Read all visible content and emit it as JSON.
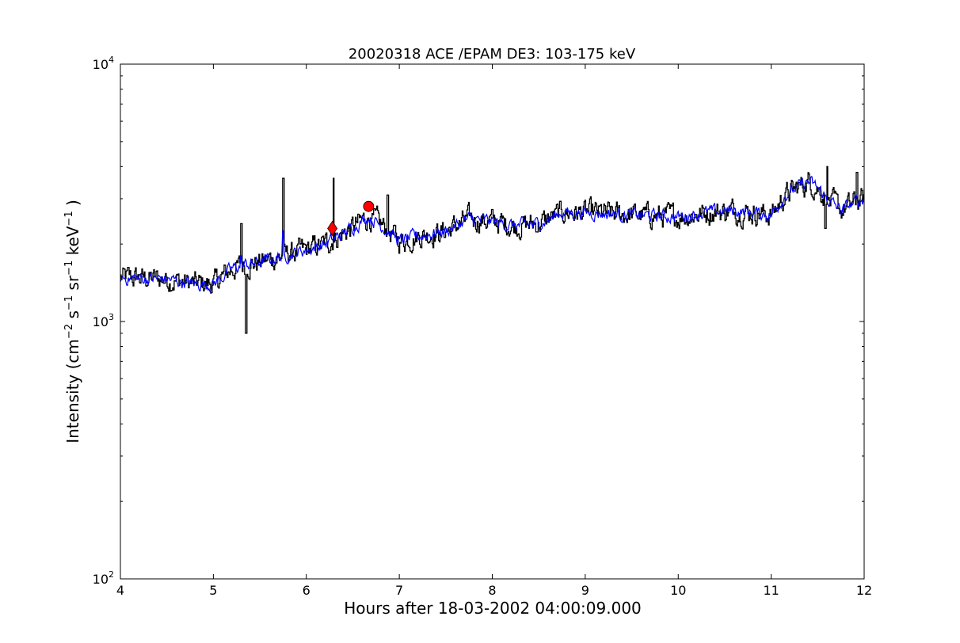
{
  "chart_data": {
    "type": "line",
    "title": "20020318 ACE /EPAM DE3: 103-175 keV",
    "xlabel": "Hours after 18-03-2002 04:00:09.000",
    "ylabel": {
      "prefix": "Intensity (cm",
      "parts": [
        {
          "text": "−2",
          "sup": true
        },
        {
          "text": " s",
          "sup": false
        },
        {
          "text": "−1",
          "sup": true
        },
        {
          "text": " sr",
          "sup": false
        },
        {
          "text": "−1",
          "sup": true
        },
        {
          "text": " keV",
          "sup": false
        },
        {
          "text": "−1",
          "sup": true
        },
        {
          "text": " )",
          "sup": false
        }
      ]
    },
    "xlim": [
      4,
      12
    ],
    "ylim": [
      100,
      10000
    ],
    "yscale": "log",
    "grid": false,
    "xticks": [
      4,
      5,
      6,
      7,
      8,
      9,
      10,
      11,
      12
    ],
    "xtick_labels": [
      "4",
      "5",
      "6",
      "7",
      "8",
      "9",
      "10",
      "11",
      "12"
    ],
    "yticks": [
      {
        "value": 100,
        "base": "10",
        "exp": "2"
      },
      {
        "value": 1000,
        "base": "10",
        "exp": "3"
      },
      {
        "value": 10000,
        "base": "10",
        "exp": "4"
      }
    ],
    "series": [
      {
        "style": "step",
        "color": "#000000",
        "noise": 0.035,
        "points": [
          [
            4.0,
            1480
          ],
          [
            4.5,
            1460
          ],
          [
            4.8,
            1400
          ],
          [
            5.0,
            1400
          ],
          [
            5.2,
            1600
          ],
          [
            5.3,
            1650
          ],
          [
            5.5,
            1700
          ],
          [
            5.75,
            1800
          ],
          [
            6.0,
            1900
          ],
          [
            6.2,
            2000
          ],
          [
            6.4,
            2200
          ],
          [
            6.55,
            2400
          ],
          [
            6.67,
            2550
          ],
          [
            6.85,
            2300
          ],
          [
            7.0,
            2050
          ],
          [
            7.2,
            2150
          ],
          [
            7.5,
            2250
          ],
          [
            7.75,
            2500
          ],
          [
            8.0,
            2450
          ],
          [
            8.25,
            2350
          ],
          [
            8.5,
            2400
          ],
          [
            8.75,
            2650
          ],
          [
            9.0,
            2650
          ],
          [
            9.5,
            2600
          ],
          [
            10.0,
            2550
          ],
          [
            10.3,
            2650
          ],
          [
            10.6,
            2700
          ],
          [
            11.0,
            2600
          ],
          [
            11.15,
            3100
          ],
          [
            11.4,
            3500
          ],
          [
            11.5,
            3300
          ],
          [
            11.6,
            3000
          ],
          [
            11.75,
            2700
          ],
          [
            11.9,
            2900
          ],
          [
            12.0,
            3000
          ]
        ],
        "spikes": [
          [
            5.3,
            2400
          ],
          [
            5.35,
            900
          ],
          [
            5.75,
            3600
          ],
          [
            6.29,
            3600
          ],
          [
            6.87,
            3100
          ],
          [
            11.58,
            2300
          ],
          [
            11.6,
            4000
          ],
          [
            11.92,
            3800
          ]
        ]
      },
      {
        "style": "line",
        "color": "#0000ff",
        "noise": 0.02,
        "points": [
          [
            4.0,
            1480
          ],
          [
            4.5,
            1460
          ],
          [
            4.8,
            1400
          ],
          [
            5.0,
            1400
          ],
          [
            5.2,
            1600
          ],
          [
            5.3,
            1650
          ],
          [
            5.5,
            1700
          ],
          [
            5.75,
            1800
          ],
          [
            6.0,
            1900
          ],
          [
            6.2,
            2000
          ],
          [
            6.4,
            2200
          ],
          [
            6.55,
            2400
          ],
          [
            6.67,
            2550
          ],
          [
            6.85,
            2300
          ],
          [
            7.0,
            2050
          ],
          [
            7.2,
            2150
          ],
          [
            7.5,
            2250
          ],
          [
            7.75,
            2500
          ],
          [
            8.0,
            2450
          ],
          [
            8.25,
            2350
          ],
          [
            8.5,
            2400
          ],
          [
            8.75,
            2650
          ],
          [
            9.0,
            2650
          ],
          [
            9.5,
            2600
          ],
          [
            10.0,
            2550
          ],
          [
            10.3,
            2650
          ],
          [
            10.6,
            2700
          ],
          [
            11.0,
            2600
          ],
          [
            11.15,
            3100
          ],
          [
            11.4,
            3500
          ],
          [
            11.5,
            3300
          ],
          [
            11.6,
            3000
          ],
          [
            11.75,
            2700
          ],
          [
            11.9,
            2900
          ],
          [
            12.0,
            3000
          ]
        ],
        "spikes": [
          [
            5.3,
            1800
          ],
          [
            5.75,
            2250
          ]
        ]
      }
    ],
    "markers": [
      {
        "shape": "diamond",
        "x": 6.28,
        "y": 2300,
        "color": "#ff0000"
      },
      {
        "shape": "circle",
        "x": 6.67,
        "y": 2800,
        "color": "#ff0000"
      }
    ]
  }
}
